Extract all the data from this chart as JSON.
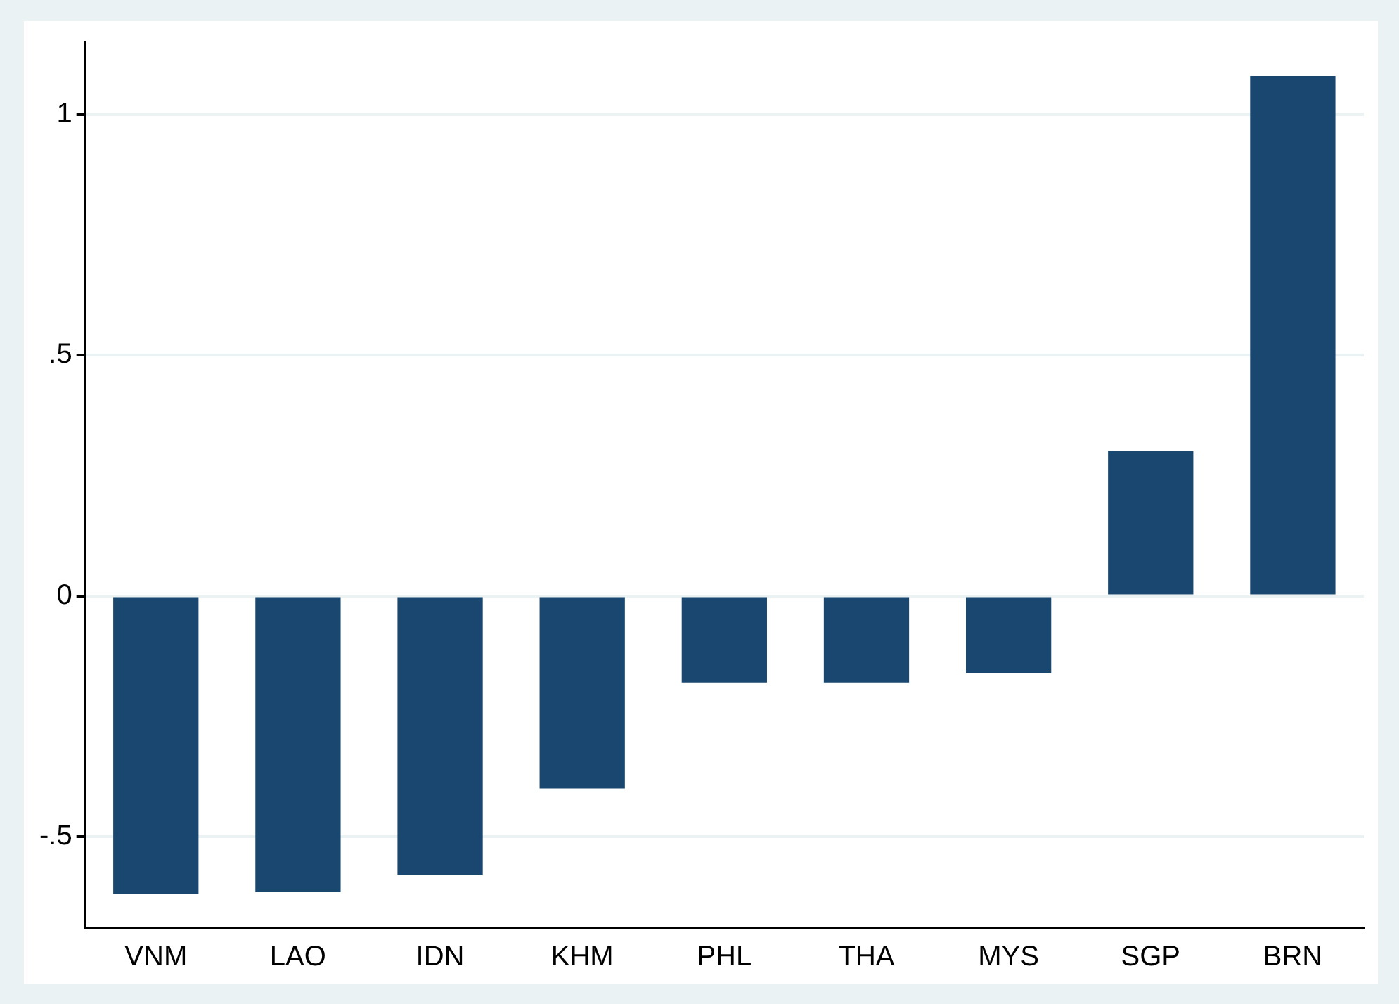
{
  "chart_data": {
    "type": "bar",
    "categories": [
      "VNM",
      "LAO",
      "IDN",
      "KHM",
      "PHL",
      "THA",
      "MYS",
      "SGP",
      "BRN"
    ],
    "values": [
      -0.62,
      -0.615,
      -0.58,
      -0.4,
      -0.18,
      -0.18,
      -0.16,
      0.3,
      1.08
    ],
    "color": "#1a476f",
    "ylim": [
      -0.69,
      1.15
    ],
    "yticks": [
      {
        "value": -0.5,
        "label": "-.5"
      },
      0,
      {
        "value": 0.5,
        "label": ".5"
      },
      1
    ],
    "grid": "y",
    "legend": false
  }
}
